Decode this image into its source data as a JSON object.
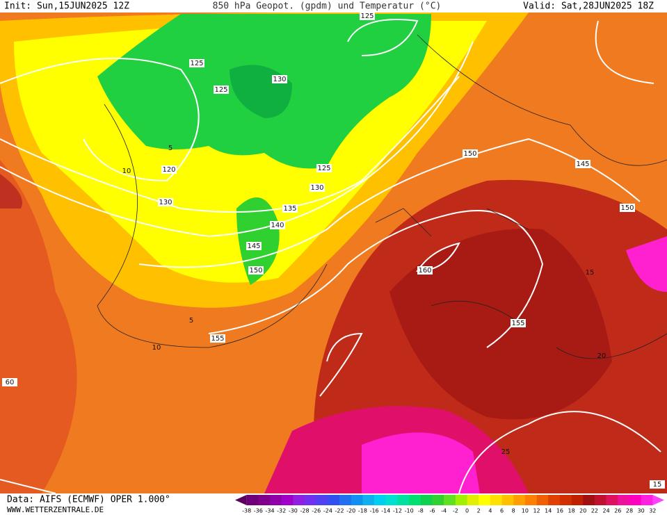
{
  "header": {
    "init": "Init: Sun,15JUN2025 12Z",
    "title": "850 hPa Geopot. (gpdm) und Temperatur (°C)",
    "valid": "Valid: Sat,28JUN2025 18Z"
  },
  "footer": {
    "data": "Data: AIFS (ECMWF) OPER 1.000°",
    "site": "WWW.WETTERZENTRALE.DE"
  },
  "scale": {
    "labels": [
      -38,
      -36,
      -34,
      -32,
      -30,
      -28,
      -26,
      -24,
      -22,
      -20,
      -18,
      -16,
      -14,
      -12,
      -10,
      -8,
      -6,
      -4,
      -2,
      0,
      2,
      4,
      6,
      8,
      10,
      12,
      14,
      16,
      18,
      20,
      22,
      24,
      26,
      28,
      30,
      32
    ],
    "colors": [
      "#5a0060",
      "#6e007a",
      "#80008c",
      "#9000a8",
      "#a000c8",
      "#9020e0",
      "#7030f0",
      "#5040f0",
      "#3050f0",
      "#2070f0",
      "#1090f0",
      "#10b0f0",
      "#00d0f0",
      "#00e0d0",
      "#00e0a0",
      "#00e070",
      "#10d050",
      "#30d030",
      "#60e020",
      "#a0f000",
      "#e0f000",
      "#ffff00",
      "#ffe000",
      "#ffc000",
      "#ffa000",
      "#ff8000",
      "#f06000",
      "#e04000",
      "#d03000",
      "#c02000",
      "#a01010",
      "#c01030",
      "#e01060",
      "#f010a0",
      "#ff00c0",
      "#ff20e0",
      "#ff40ff"
    ]
  },
  "map": {
    "contour_labels": [
      125,
      125,
      125,
      130,
      120,
      130,
      125,
      130,
      135,
      140,
      145,
      150,
      155,
      155,
      150,
      160,
      150,
      145,
      60,
      5,
      10,
      5,
      10,
      15,
      20,
      25,
      15
    ]
  }
}
